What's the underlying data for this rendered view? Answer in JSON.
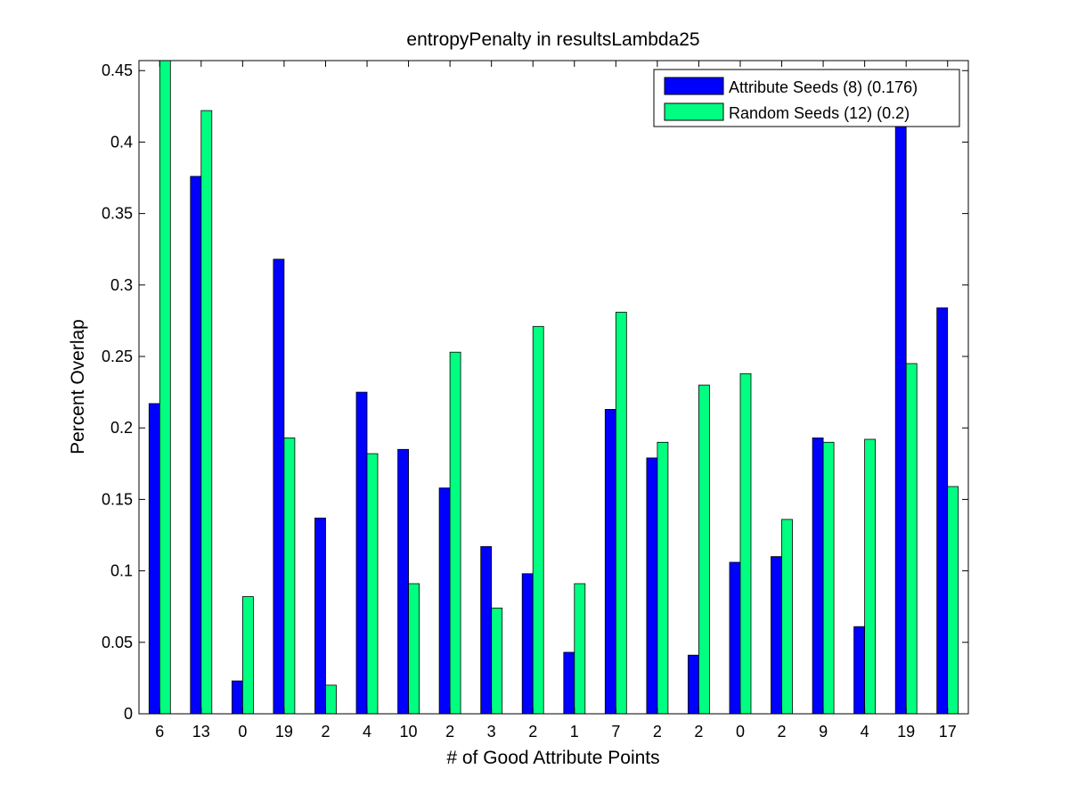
{
  "chart_data": {
    "type": "bar",
    "title": "entropyPenalty in resultsLambda25",
    "xlabel": "# of Good Attribute Points",
    "ylabel": "Percent Overlap",
    "ylim": [
      0,
      0.457
    ],
    "yticks": [
      "0",
      "0.05",
      "0.1",
      "0.15",
      "0.2",
      "0.25",
      "0.3",
      "0.35",
      "0.4",
      "0.45"
    ],
    "categories": [
      "6",
      "13",
      "0",
      "19",
      "2",
      "4",
      "10",
      "2",
      "3",
      "2",
      "1",
      "7",
      "2",
      "2",
      "0",
      "2",
      "9",
      "4",
      "19",
      "17"
    ],
    "series": [
      {
        "name": "Attribute Seeds (8) (0.176)",
        "color": "#0000ff",
        "values": [
          0.217,
          0.376,
          0.023,
          0.318,
          0.137,
          0.225,
          0.185,
          0.158,
          0.117,
          0.098,
          0.043,
          0.213,
          0.179,
          0.041,
          0.106,
          0.11,
          0.193,
          0.061,
          0.418,
          0.284
        ]
      },
      {
        "name": "Random Seeds (12) (0.2)",
        "color": "#00ff80",
        "values": [
          0.457,
          0.422,
          0.082,
          0.193,
          0.02,
          0.182,
          0.091,
          0.253,
          0.074,
          0.271,
          0.091,
          0.281,
          0.19,
          0.23,
          0.238,
          0.136,
          0.19,
          0.192,
          0.245,
          0.159
        ]
      }
    ],
    "grid": false,
    "legend_position": "top-right"
  }
}
